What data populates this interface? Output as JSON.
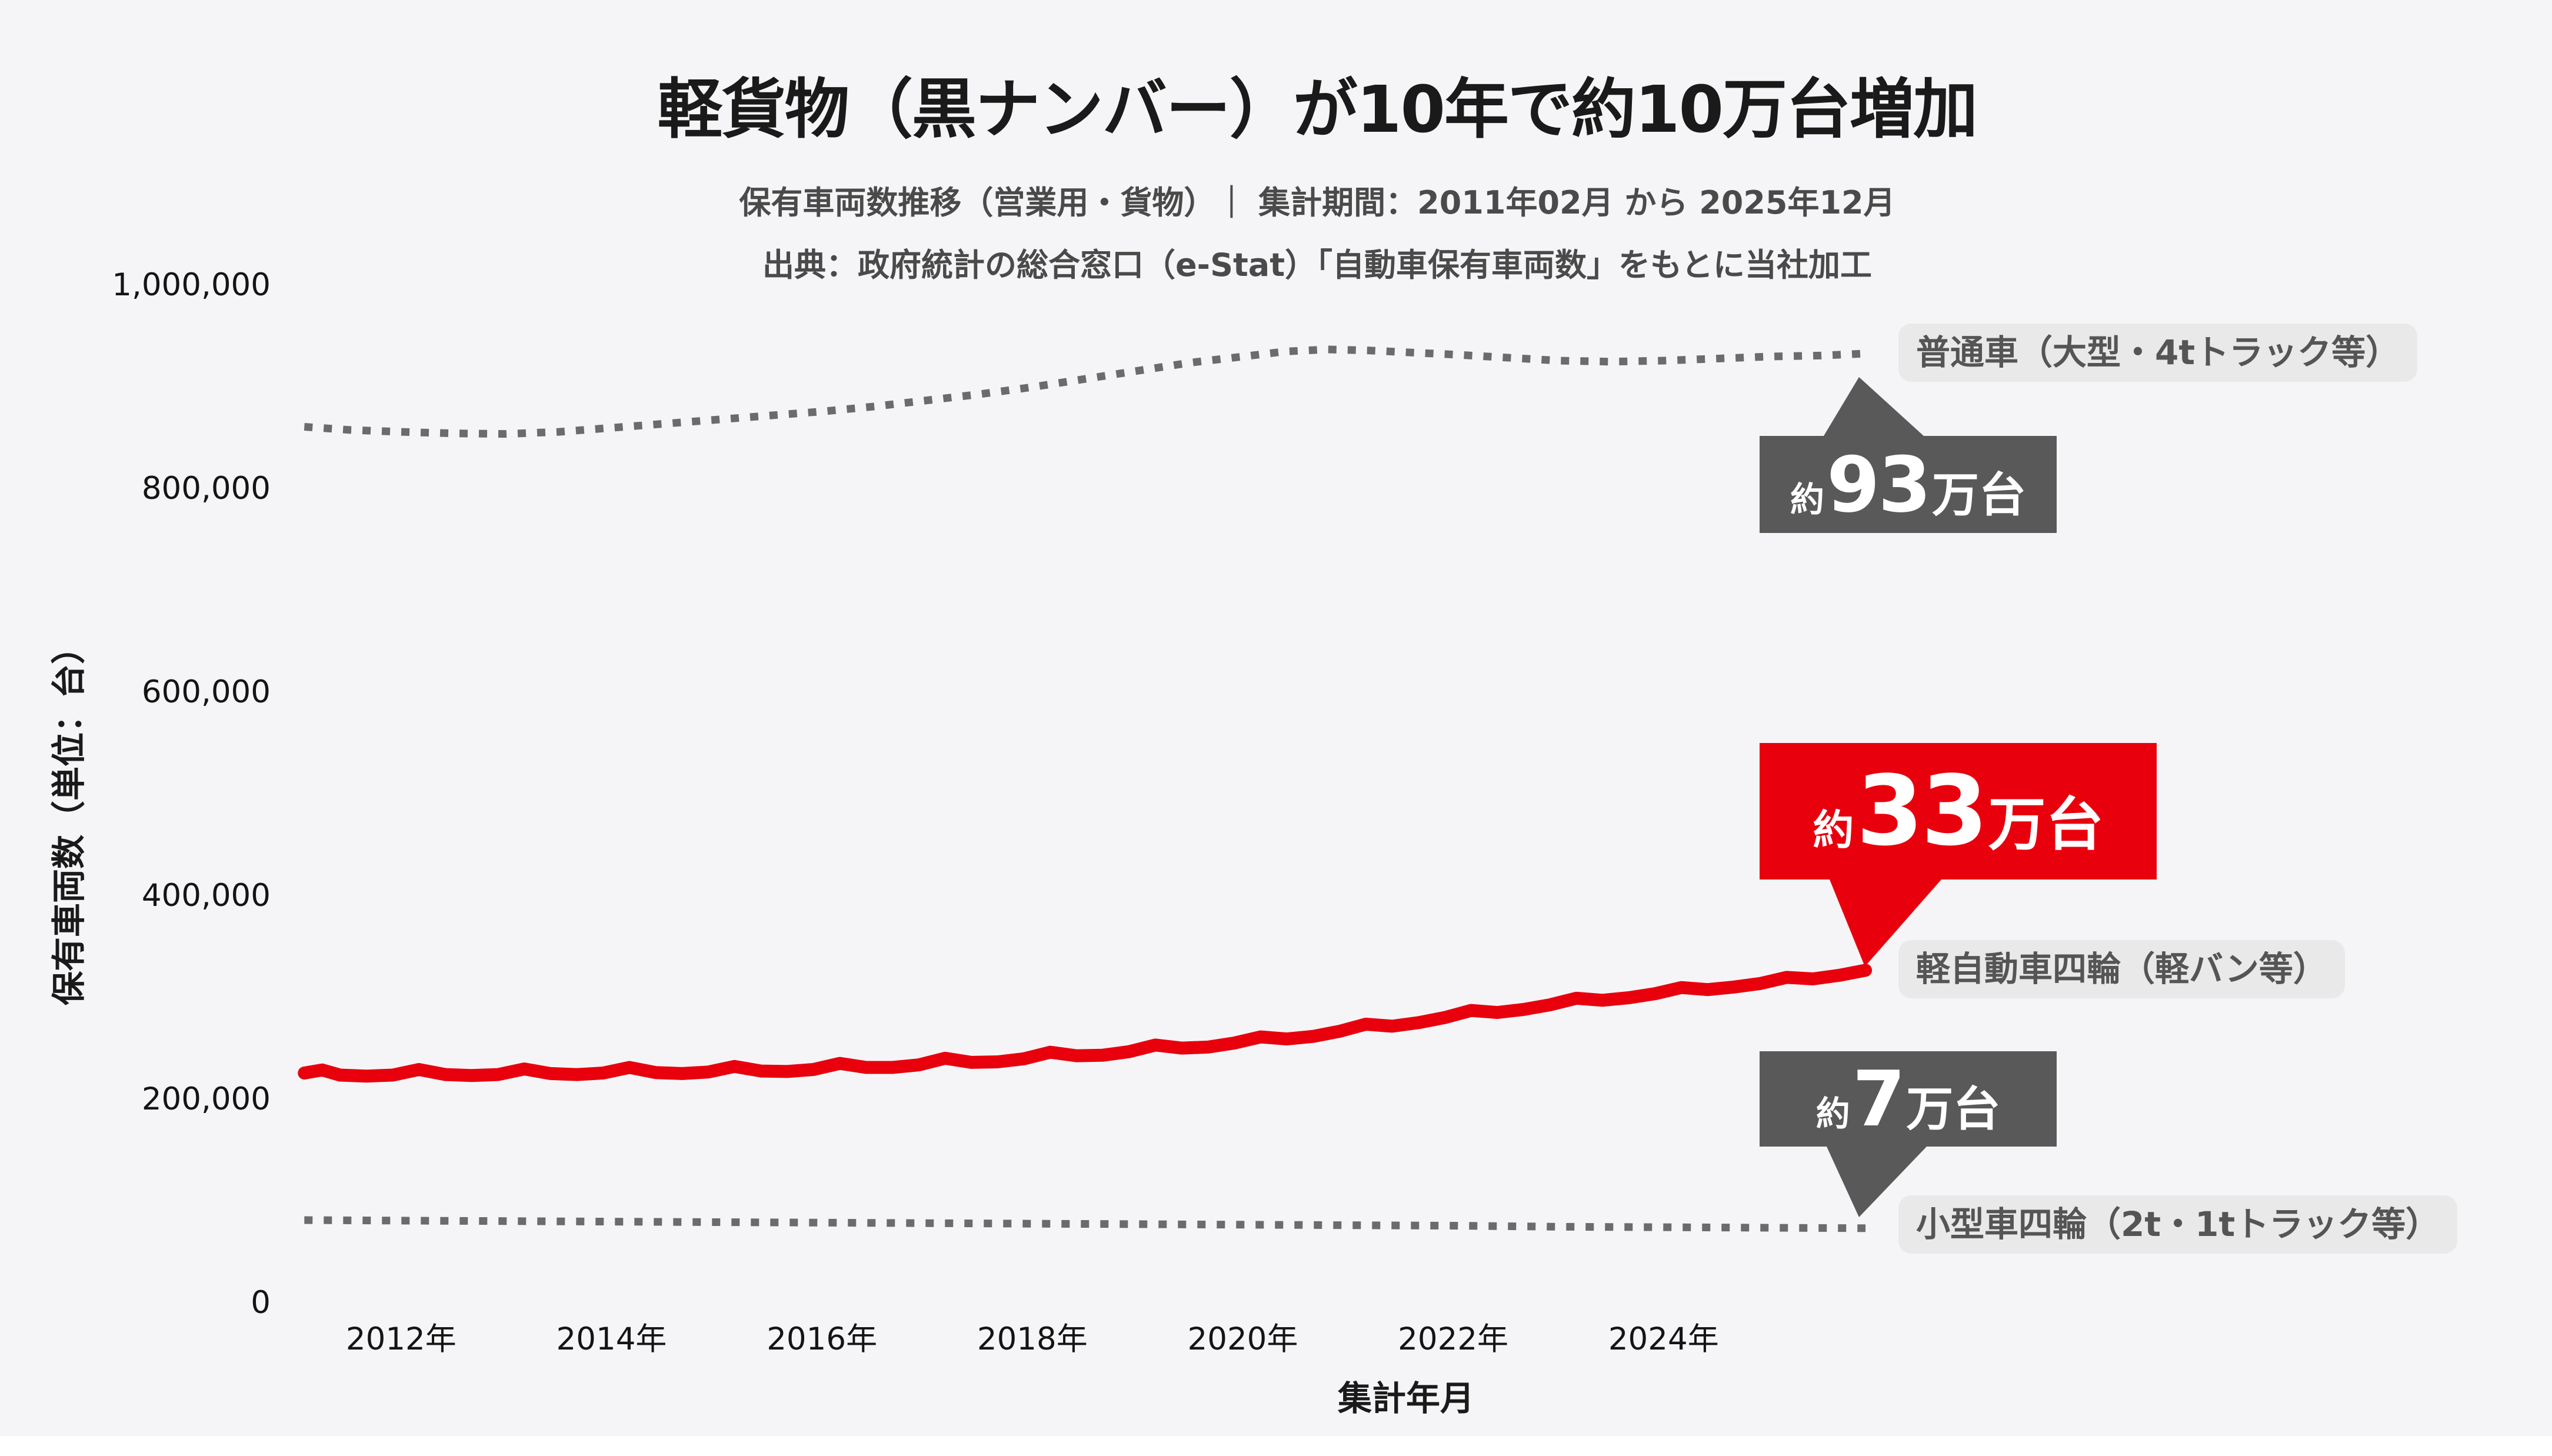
{
  "title": "軽貨物（黒ナンバー）が10年で約10万台増加",
  "subtitle": "保有車両数推移（営業用・貨物）｜ 集計期間：2011年02月 から 2025年12月",
  "source": "出典：政府統計の総合窓口（e-Stat）「自動車保有車両数」をもとに当社加工",
  "colors": {
    "background": "#f5f5f7",
    "accent_red": "#e8000d",
    "callout_gray": "#595959",
    "line_gray": "#6b6b6b",
    "chip_background": "#e9e9ea",
    "chip_text": "#555555"
  },
  "chart_data": {
    "type": "line",
    "title": "軽貨物（黒ナンバー）が10年で約10万台増加",
    "xlabel": "集計年月",
    "ylabel": "保有車両数（単位：台）",
    "x_axis": {
      "range_description": "2011年02月 から 2025年12月",
      "range": [
        2011.08,
        2025.92
      ],
      "ticks": [
        {
          "label": "2012年",
          "value": 2012
        },
        {
          "label": "2014年",
          "value": 2014
        },
        {
          "label": "2016年",
          "value": 2016
        },
        {
          "label": "2018年",
          "value": 2018
        },
        {
          "label": "2020年",
          "value": 2020
        },
        {
          "label": "2022年",
          "value": 2022
        },
        {
          "label": "2024年",
          "value": 2024
        }
      ]
    },
    "y_axis": {
      "range": [
        0,
        1000000
      ],
      "grid": false,
      "ticks": [
        {
          "label": "0",
          "value": 0
        },
        {
          "label": "200,000",
          "value": 200000
        },
        {
          "label": "400,000",
          "value": 400000
        },
        {
          "label": "600,000",
          "value": 600000
        },
        {
          "label": "800,000",
          "value": 800000
        },
        {
          "label": "1,000,000",
          "value": 1000000
        }
      ]
    },
    "legend_position": "right-of-line-ends",
    "series": [
      {
        "name": "普通車（大型・4tトラック等）",
        "color": "#6b6b6b",
        "style": "dotted",
        "approx_latest": "約93万台",
        "points": [
          [
            2011.08,
            861000
          ],
          [
            2011.5,
            858000
          ],
          [
            2012.0,
            856000
          ],
          [
            2012.5,
            854500
          ],
          [
            2013.0,
            854000
          ],
          [
            2013.5,
            856000
          ],
          [
            2014.0,
            860000
          ],
          [
            2014.5,
            864000
          ],
          [
            2015.0,
            868000
          ],
          [
            2015.5,
            872000
          ],
          [
            2016.0,
            876000
          ],
          [
            2016.5,
            881000
          ],
          [
            2017.0,
            887000
          ],
          [
            2017.5,
            893000
          ],
          [
            2018.0,
            900000
          ],
          [
            2018.5,
            908000
          ],
          [
            2019.0,
            916000
          ],
          [
            2019.5,
            924000
          ],
          [
            2020.0,
            930000
          ],
          [
            2020.4,
            935000
          ],
          [
            2020.8,
            937000
          ],
          [
            2021.2,
            936000
          ],
          [
            2021.6,
            934000
          ],
          [
            2022.0,
            932000
          ],
          [
            2022.5,
            929000
          ],
          [
            2023.0,
            926000
          ],
          [
            2023.5,
            925000
          ],
          [
            2024.0,
            926000
          ],
          [
            2024.5,
            928000
          ],
          [
            2025.0,
            930000
          ],
          [
            2025.5,
            931000
          ],
          [
            2025.92,
            933000
          ]
        ]
      },
      {
        "name": "軽自動車四輪（軽バン等）",
        "color": "#e8000d",
        "style": "solid",
        "approx_latest": "約33万台",
        "points": [
          [
            2011.08,
            226000
          ],
          [
            2011.25,
            229000
          ],
          [
            2011.42,
            224000
          ],
          [
            2011.67,
            223000
          ],
          [
            2011.92,
            224000
          ],
          [
            2012.17,
            229500
          ],
          [
            2012.42,
            224500
          ],
          [
            2012.67,
            223500
          ],
          [
            2012.92,
            224500
          ],
          [
            2013.17,
            230000
          ],
          [
            2013.42,
            225500
          ],
          [
            2013.67,
            224500
          ],
          [
            2013.92,
            226000
          ],
          [
            2014.17,
            231500
          ],
          [
            2014.42,
            226500
          ],
          [
            2014.67,
            225500
          ],
          [
            2014.92,
            227000
          ],
          [
            2015.17,
            232500
          ],
          [
            2015.42,
            228000
          ],
          [
            2015.67,
            227500
          ],
          [
            2015.92,
            229500
          ],
          [
            2016.17,
            235500
          ],
          [
            2016.42,
            231500
          ],
          [
            2016.67,
            231500
          ],
          [
            2016.92,
            234000
          ],
          [
            2017.17,
            240500
          ],
          [
            2017.42,
            236500
          ],
          [
            2017.67,
            237000
          ],
          [
            2017.92,
            240000
          ],
          [
            2018.17,
            246500
          ],
          [
            2018.42,
            243000
          ],
          [
            2018.67,
            243500
          ],
          [
            2018.92,
            247000
          ],
          [
            2019.17,
            253500
          ],
          [
            2019.42,
            250500
          ],
          [
            2019.67,
            251500
          ],
          [
            2019.92,
            255500
          ],
          [
            2020.17,
            261500
          ],
          [
            2020.42,
            259500
          ],
          [
            2020.67,
            262000
          ],
          [
            2020.92,
            267000
          ],
          [
            2021.17,
            274000
          ],
          [
            2021.42,
            272000
          ],
          [
            2021.67,
            275500
          ],
          [
            2021.92,
            280500
          ],
          [
            2022.17,
            287500
          ],
          [
            2022.42,
            285500
          ],
          [
            2022.67,
            288500
          ],
          [
            2022.92,
            293000
          ],
          [
            2023.17,
            299500
          ],
          [
            2023.42,
            297500
          ],
          [
            2023.67,
            300000
          ],
          [
            2023.92,
            304000
          ],
          [
            2024.17,
            310000
          ],
          [
            2024.42,
            308000
          ],
          [
            2024.67,
            310500
          ],
          [
            2024.92,
            314000
          ],
          [
            2025.17,
            320000
          ],
          [
            2025.42,
            318500
          ],
          [
            2025.67,
            322000
          ],
          [
            2025.92,
            327000
          ]
        ]
      },
      {
        "name": "小型車四輪（2t・1tトラック等）",
        "color": "#6b6b6b",
        "style": "dotted",
        "approx_latest": "約7万台",
        "points": [
          [
            2011.08,
            81500
          ],
          [
            2012.0,
            81000
          ],
          [
            2013.0,
            80500
          ],
          [
            2014.0,
            80000
          ],
          [
            2015.0,
            79500
          ],
          [
            2016.0,
            79000
          ],
          [
            2017.0,
            78500
          ],
          [
            2018.0,
            78000
          ],
          [
            2019.0,
            77500
          ],
          [
            2020.0,
            77000
          ],
          [
            2021.0,
            76500
          ],
          [
            2022.0,
            76000
          ],
          [
            2023.0,
            75000
          ],
          [
            2024.0,
            74500
          ],
          [
            2025.0,
            74000
          ],
          [
            2025.92,
            73500
          ]
        ]
      }
    ],
    "annotations": [
      {
        "prefix": "約",
        "value": "93",
        "unit": "万台",
        "color": "#595959",
        "text_color": "#ffffff"
      },
      {
        "prefix": "約",
        "value": "33",
        "unit": "万台",
        "color": "#e8000d",
        "text_color": "#ffffff"
      },
      {
        "prefix": "約",
        "value": "7",
        "unit": "万台",
        "color": "#595959",
        "text_color": "#ffffff"
      }
    ]
  }
}
